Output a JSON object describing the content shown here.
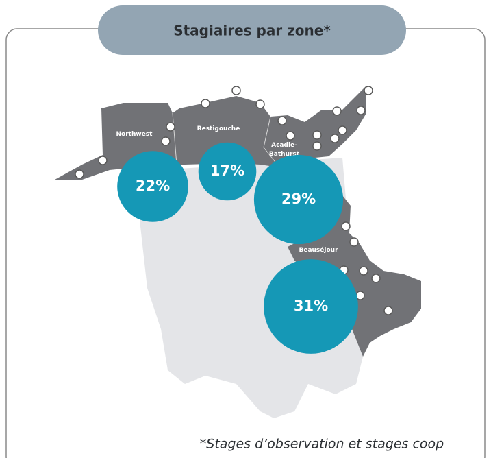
{
  "title": "Stagiaires par zone*",
  "zones": [
    {
      "name": "Northwest",
      "value": 22,
      "value_label": "22%"
    },
    {
      "name": "Restigouche",
      "value": 17,
      "value_label": "17%"
    },
    {
      "name": "Acadie-Bathurst",
      "value": 29,
      "value_label": "29%"
    },
    {
      "name": "Beauséjour",
      "value": 31,
      "value_label": "31%"
    }
  ],
  "footnote": "*Stages d’observation et stages coop"
}
